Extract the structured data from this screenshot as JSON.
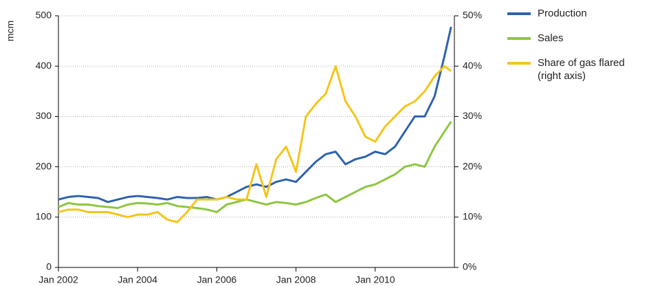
{
  "chart_data": {
    "type": "line",
    "ylabel": "mcm",
    "x": [
      "2002-01",
      "2002-04",
      "2002-07",
      "2002-10",
      "2003-01",
      "2003-04",
      "2003-07",
      "2003-10",
      "2004-01",
      "2004-04",
      "2004-07",
      "2004-10",
      "2005-01",
      "2005-04",
      "2005-07",
      "2005-10",
      "2006-01",
      "2006-04",
      "2006-07",
      "2006-10",
      "2007-01",
      "2007-04",
      "2007-07",
      "2007-10",
      "2008-01",
      "2008-04",
      "2008-07",
      "2008-10",
      "2009-01",
      "2009-04",
      "2009-07",
      "2009-10",
      "2010-01",
      "2010-04",
      "2010-07",
      "2010-10",
      "2011-01",
      "2011-04",
      "2011-07",
      "2011-10",
      "2011-12"
    ],
    "xlim": [
      "2002-01",
      "2012-01"
    ],
    "xticks": [
      {
        "value": "2002-01",
        "label": "Jan 2002"
      },
      {
        "value": "2004-01",
        "label": "Jan 2004"
      },
      {
        "value": "2006-01",
        "label": "Jan 2006"
      },
      {
        "value": "2008-01",
        "label": "Jan 2008"
      },
      {
        "value": "2010-01",
        "label": "Jan 2010"
      }
    ],
    "ylim": [
      0,
      500
    ],
    "yticks": [
      0,
      100,
      200,
      300,
      400,
      500
    ],
    "y2lim": [
      0,
      50
    ],
    "y2ticks": [
      {
        "value": 0,
        "label": "0%"
      },
      {
        "value": 10,
        "label": "10%"
      },
      {
        "value": 20,
        "label": "20%"
      },
      {
        "value": 30,
        "label": "30%"
      },
      {
        "value": 40,
        "label": "40%"
      },
      {
        "value": 50,
        "label": "50%"
      }
    ],
    "grid": true,
    "series": [
      {
        "name": "Production",
        "color": "#2e62ad",
        "values": [
          135,
          140,
          142,
          140,
          138,
          130,
          135,
          140,
          142,
          140,
          138,
          135,
          140,
          138,
          138,
          140,
          135,
          140,
          150,
          160,
          165,
          160,
          170,
          175,
          170,
          190,
          210,
          225,
          230,
          205,
          215,
          220,
          230,
          225,
          240,
          270,
          300,
          300,
          340,
          420,
          478
        ]
      },
      {
        "name": "Sales",
        "color": "#8cc63f",
        "values": [
          120,
          128,
          125,
          125,
          122,
          120,
          118,
          125,
          128,
          127,
          125,
          128,
          122,
          120,
          118,
          115,
          110,
          125,
          130,
          135,
          130,
          125,
          130,
          128,
          125,
          130,
          138,
          145,
          130,
          140,
          150,
          160,
          165,
          175,
          185,
          200,
          205,
          200,
          240,
          270,
          290
        ]
      },
      {
        "name": "Share of gas flared (right axis)",
        "color": "#f5c518",
        "axis": "y2",
        "values": [
          11,
          11.5,
          11.5,
          11,
          11,
          11,
          10.5,
          10,
          10.5,
          10.5,
          11,
          9.5,
          9,
          11,
          13.5,
          13.5,
          13.5,
          14,
          13.5,
          13.5,
          20.5,
          14,
          21.5,
          24,
          19,
          30,
          32.5,
          34.5,
          40,
          33,
          30,
          26,
          25,
          28,
          30,
          32,
          33,
          35,
          38,
          40,
          39
        ]
      }
    ]
  }
}
